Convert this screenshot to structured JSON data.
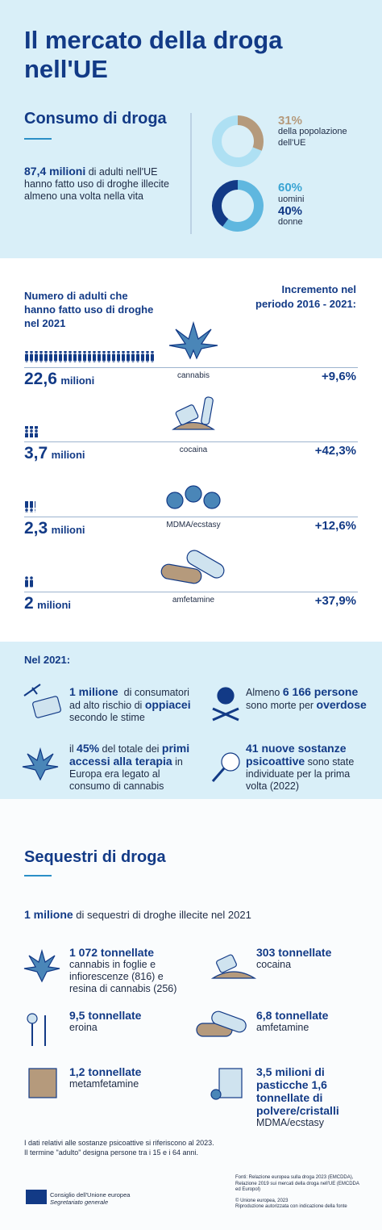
{
  "header": {
    "title": "Il mercato della droga nell'UE"
  },
  "consumption": {
    "title": "Consumo di droga",
    "adults_highlight": "87,4 milioni",
    "adults_text": "di adulti nell'UE hanno fatto uso di droghe illecite almeno una volta nella vita",
    "population": {
      "value": 31,
      "label": "31%",
      "text": "della popolazione dell'UE"
    },
    "men": {
      "value": 60,
      "label": "60%",
      "text": "uomini"
    },
    "women": {
      "value": 40,
      "label": "40%",
      "text": "donne"
    }
  },
  "users": {
    "left_header": "Numero di adulti che hanno fatto uso di droghe nel 2021",
    "right_header": "Incremento nel periodo 2016 - 2021:",
    "rows": [
      {
        "amount": "22,6",
        "unit": "milioni",
        "drug": "cannabis",
        "change": "+9,6%"
      },
      {
        "amount": "3,7",
        "unit": "milioni",
        "drug": "cocaina",
        "change": "+42,3%"
      },
      {
        "amount": "2,3",
        "unit": "milioni",
        "drug": "MDMA/ecstasy",
        "change": "+12,6%"
      },
      {
        "amount": "2",
        "unit": "milioni",
        "drug": "amfetamine",
        "change": "+37,9%"
      }
    ]
  },
  "year_2021": {
    "title": "Nel 2021:",
    "items": [
      {
        "parts": [
          {
            "text": "1 milione",
            "bold": true
          },
          {
            "text": "  di consumatori ad alto rischio di ",
            "bold": false
          },
          {
            "text": "oppiacei",
            "bold": true
          },
          {
            "text": " secondo le stime",
            "bold": false
          }
        ]
      },
      {
        "parts": [
          {
            "text": "Almeno ",
            "bold": false
          },
          {
            "text": "6 166 persone",
            "bold": true
          },
          {
            "text": " sono morte per ",
            "bold": false
          },
          {
            "text": "overdose",
            "bold": true
          }
        ]
      },
      {
        "parts": [
          {
            "text": "il ",
            "bold": false
          },
          {
            "text": "45%",
            "bold": true
          },
          {
            "text": " del totale dei ",
            "bold": false
          },
          {
            "text": "primi accessi alla terapia",
            "bold": true
          },
          {
            "text": " in Europa era legato al consumo di cannabis",
            "bold": false
          }
        ]
      },
      {
        "parts": [
          {
            "text": "41 nuove sostanze psicoattive",
            "bold": true
          },
          {
            "text": " sono state individuate per la prima volta (2022)",
            "bold": false
          }
        ]
      }
    ]
  },
  "seizures": {
    "title": "Sequestri di droga",
    "intro": [
      {
        "text": "1 milione",
        "bold": true
      },
      {
        "text": " di sequestri di droghe illecite nel 2021",
        "bold": false
      }
    ],
    "items": [
      {
        "amount": "1 072 tonnellate",
        "detail": "cannabis in foglie e infiorescenze (816) e resina di cannabis (256)"
      },
      {
        "amount": "303 tonnellate",
        "detail": "cocaina"
      },
      {
        "amount": "9,5 tonnellate",
        "detail": "eroina"
      },
      {
        "amount": "6,8 tonnellate",
        "detail": "amfetamine"
      },
      {
        "amount": "1,2 tonnellate",
        "detail": "metamfetamine"
      },
      {
        "amount": "3,5 milioni di pasticche 1,6 tonnellate di polvere/cristalli",
        "detail": "MDMA/ecstasy"
      }
    ]
  },
  "footnotes": [
    "I dati relativi alle sostanze psicoattive si riferiscono al 2023.",
    "Il termine \"adulto\" designa persone tra i 15 e i 64 anni."
  ],
  "footer": {
    "org": "Consiglio dell'Unione europea",
    "org_sub": "Segretariato generale",
    "sources": "Fonti: Relazione europea sulla droga 2023 (EMCDDA), Relazione 2019 sui mercati della droga nell'UE (EMCDDA ed Europol)",
    "copyright": "© Unione europea, 2023",
    "reproduction": "Riproduzione autorizzata con indicazione della fonte"
  }
}
